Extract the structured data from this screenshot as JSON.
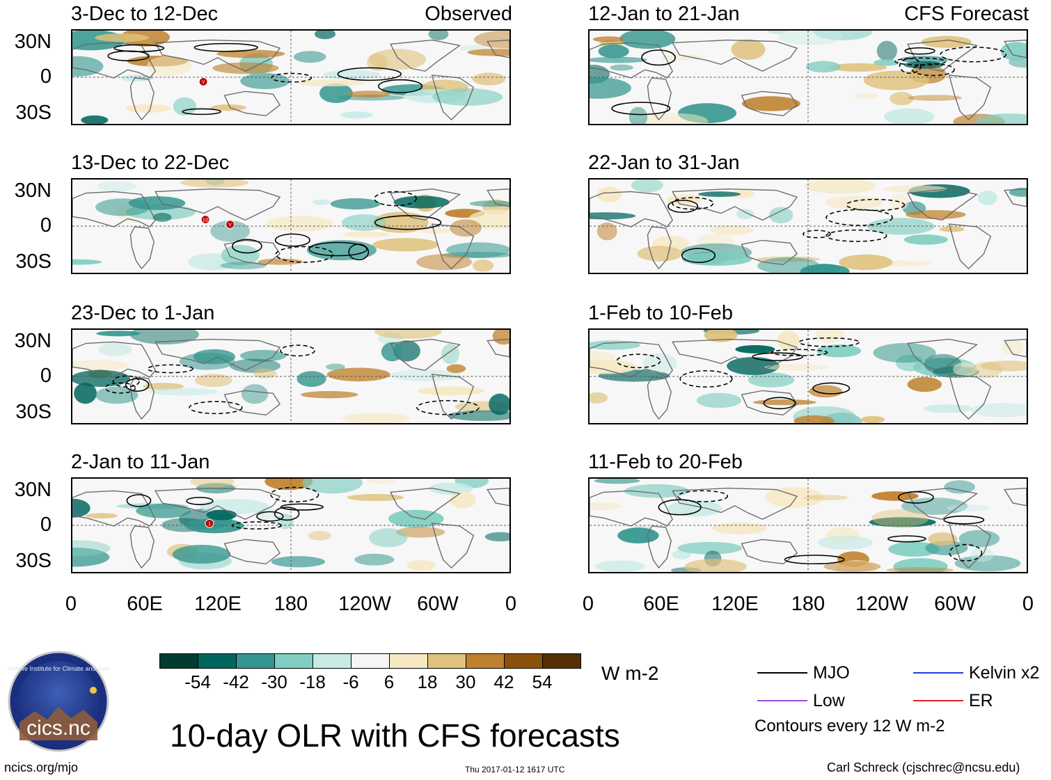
{
  "header": {
    "observed_tag": "Observed",
    "forecast_tag": "CFS Forecast"
  },
  "panels": [
    {
      "title": "3-Dec to 12-Dec",
      "markers": [
        "Y"
      ]
    },
    {
      "title": "13-Dec to 22-Dec",
      "markers": [
        "10",
        "Y"
      ]
    },
    {
      "title": "23-Dec to 1-Jan",
      "markers": []
    },
    {
      "title": "2-Jan to 11-Jan",
      "markers": [
        "1"
      ]
    },
    {
      "title": "12-Jan to 21-Jan",
      "markers": []
    },
    {
      "title": "22-Jan to 31-Jan",
      "markers": []
    },
    {
      "title": "1-Feb to 10-Feb",
      "markers": []
    },
    {
      "title": "11-Feb to 20-Feb",
      "markers": []
    }
  ],
  "axes": {
    "lat_labels": [
      "30N",
      "0",
      "30S"
    ],
    "lon_labels": [
      "0",
      "60E",
      "120E",
      "180",
      "120W",
      "60W",
      "0"
    ]
  },
  "colorbar": {
    "colors": [
      "#003c30",
      "#01665e",
      "#35978f",
      "#80cdc1",
      "#c7eae5",
      "#f5f5f5",
      "#f6e8c3",
      "#dfc27d",
      "#bf812d",
      "#8c510a",
      "#543005"
    ],
    "labels": [
      "-54",
      "-42",
      "-30",
      "-18",
      "-6",
      "6",
      "18",
      "30",
      "42",
      "54"
    ],
    "units": "W m-2"
  },
  "legend": {
    "items": [
      {
        "label": "MJO",
        "color": "#000000"
      },
      {
        "label": "Kelvin x2",
        "color": "#1f3fd6"
      },
      {
        "label": "Low",
        "color": "#9b4be0"
      },
      {
        "label": "ER",
        "color": "#e02020"
      }
    ],
    "note": "Contours every 12 W m-2"
  },
  "title": "10-day OLR with CFS forecasts",
  "logo": {
    "text": "cics.nc",
    "ring_text": "Cooperative Institute for Climate and Satellites"
  },
  "footer": {
    "url": "ncics.org/mjo",
    "timestamp": "Thu 2017-01-12 1617 UTC",
    "credit": "Carl Schreck (cjschrec@ncsu.edu)"
  }
}
